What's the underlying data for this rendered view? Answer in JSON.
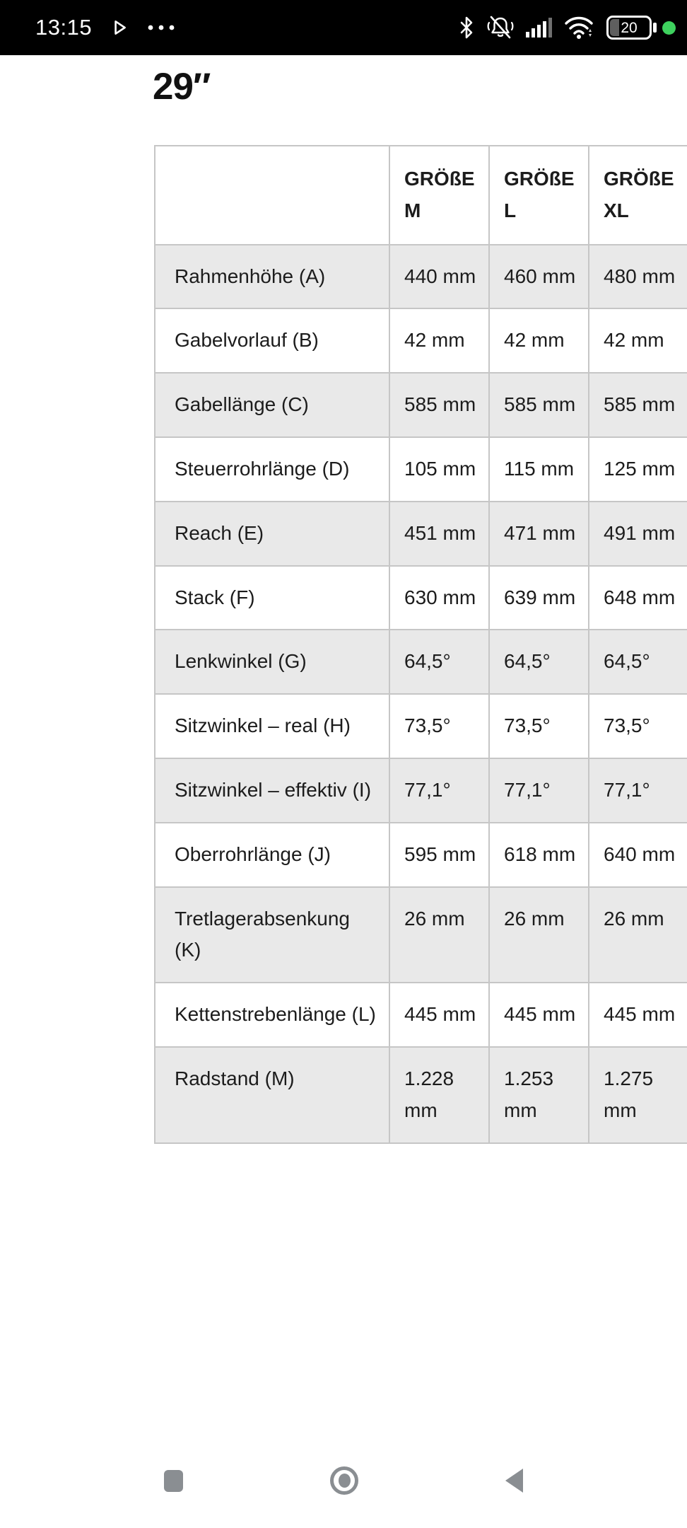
{
  "status_bar": {
    "time": "13:15",
    "battery_level": "20",
    "icons_left": [
      "play-outline-icon",
      "ellipsis-icon"
    ],
    "icons_right": [
      "bluetooth-icon",
      "bell-muted-icon",
      "signal-strength-icon",
      "wifi-icon",
      "battery-icon",
      "recording-indicator-dot"
    ]
  },
  "page": {
    "heading": "29″"
  },
  "table": {
    "columns": [
      "GRÖßE M",
      "GRÖßE L",
      "GRÖßE XL"
    ],
    "rows": [
      {
        "label": "Rahmenhöhe (A)",
        "values": [
          "440 mm",
          "460 mm",
          "480 mm"
        ]
      },
      {
        "label": "Gabelvorlauf (B)",
        "values": [
          "42 mm",
          "42 mm",
          "42 mm"
        ]
      },
      {
        "label": "Gabellänge (C)",
        "values": [
          "585 mm",
          "585 mm",
          "585 mm"
        ]
      },
      {
        "label": "Steuerrohrlänge (D)",
        "values": [
          "105 mm",
          "115 mm",
          "125 mm"
        ]
      },
      {
        "label": "Reach (E)",
        "values": [
          "451 mm",
          "471 mm",
          "491 mm"
        ]
      },
      {
        "label": "Stack (F)",
        "values": [
          "630 mm",
          "639 mm",
          "648 mm"
        ]
      },
      {
        "label": "Lenkwinkel (G)",
        "values": [
          "64,5°",
          "64,5°",
          "64,5°"
        ]
      },
      {
        "label": "Sitzwinkel – real (H)",
        "values": [
          "73,5°",
          "73,5°",
          "73,5°"
        ]
      },
      {
        "label": "Sitzwinkel – effektiv (I)",
        "values": [
          "77,1°",
          "77,1°",
          "77,1°"
        ]
      },
      {
        "label": "Oberrohrlänge (J)",
        "values": [
          "595 mm",
          "618 mm",
          "640 mm"
        ]
      },
      {
        "label": "Tretlagerabsenkung (K)",
        "values": [
          "26 mm",
          "26 mm",
          "26 mm"
        ]
      },
      {
        "label": "Kettenstrebenlänge (L)",
        "values": [
          "445 mm",
          "445 mm",
          "445 mm"
        ]
      },
      {
        "label": "Radstand (M)",
        "values": [
          "1.228 mm",
          "1.253 mm",
          "1.275 mm"
        ]
      }
    ]
  },
  "nav_bar": {
    "icons": [
      "recents-square-icon",
      "home-circle-icon",
      "back-triangle-icon"
    ]
  },
  "colors": {
    "status_bar_bg": "#000000",
    "row_stripe": "#e9e9e9",
    "table_border": "#c6c6c6",
    "nav_icon": "#8a8e92",
    "indicator_green": "#3ed15e",
    "battery_fill": "#5f5f5f"
  }
}
